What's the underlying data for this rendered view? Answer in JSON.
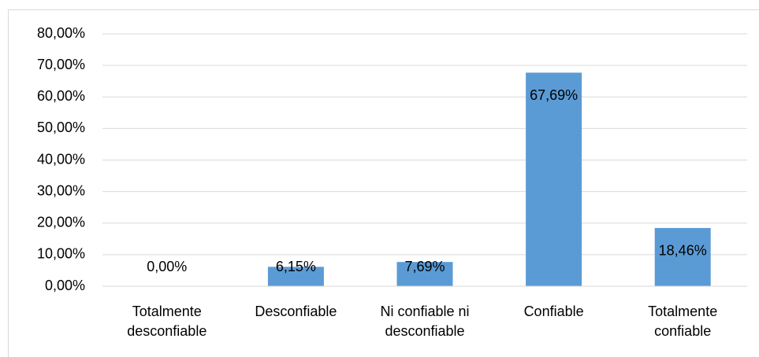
{
  "chart_data": {
    "type": "bar",
    "categories": [
      "Totalmente desconfiable",
      "Desconfiable",
      "Ni confiable ni desconfiable",
      "Confiable",
      "Totalmente confiable"
    ],
    "values": [
      0,
      6.15,
      7.69,
      67.69,
      18.46
    ],
    "value_labels": [
      "0,00%",
      "6,15%",
      "7,69%",
      "67,69%",
      "18,46%"
    ],
    "color": "#5b9bd5",
    "ylim": [
      0,
      80
    ],
    "yticks": [
      {
        "value": 0,
        "label": "0,00%"
      },
      {
        "value": 10,
        "label": "10,00%"
      },
      {
        "value": 20,
        "label": "20,00%"
      },
      {
        "value": 30,
        "label": "30,00%"
      },
      {
        "value": 40,
        "label": "40,00%"
      },
      {
        "value": 50,
        "label": "50,00%"
      },
      {
        "value": 60,
        "label": "60,00%"
      },
      {
        "value": 70,
        "label": "70,00%"
      },
      {
        "value": 80,
        "label": "80,00%"
      }
    ],
    "grid": true
  }
}
